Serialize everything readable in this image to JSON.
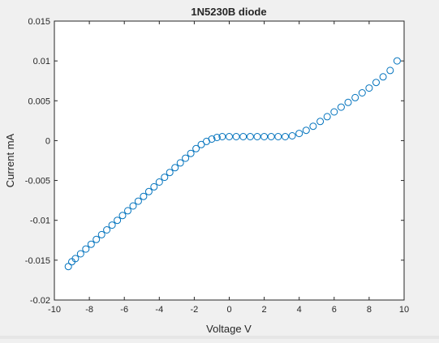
{
  "chart_data": {
    "type": "scatter",
    "title": "1N5230B diode",
    "xlabel": "Voltage V",
    "ylabel": "Current mA",
    "xlim": [
      -10,
      10
    ],
    "ylim": [
      -0.02,
      0.015
    ],
    "xticks": [
      -10,
      -8,
      -6,
      -4,
      -2,
      0,
      2,
      4,
      6,
      8,
      10
    ],
    "yticks": [
      -0.02,
      -0.015,
      -0.01,
      -0.005,
      0,
      0.005,
      0.01,
      0.015
    ],
    "xtick_labels": [
      "-10",
      "-8",
      "-6",
      "-4",
      "-2",
      "0",
      "2",
      "4",
      "6",
      "8",
      "10"
    ],
    "ytick_labels": [
      "-0.02",
      "-0.015",
      "-0.01",
      "-0.005",
      "0",
      "0.005",
      "0.01",
      "0.015"
    ],
    "marker": "open-circle",
    "marker_color": "#0072bd",
    "grid": false,
    "series": [
      {
        "points": [
          [
            -9.2,
            -0.0158
          ],
          [
            -9.0,
            -0.0152
          ],
          [
            -8.8,
            -0.0148
          ],
          [
            -8.5,
            -0.0142
          ],
          [
            -8.2,
            -0.0136
          ],
          [
            -7.9,
            -0.013
          ],
          [
            -7.6,
            -0.0124
          ],
          [
            -7.3,
            -0.0118
          ],
          [
            -7.0,
            -0.0112
          ],
          [
            -6.7,
            -0.0106
          ],
          [
            -6.4,
            -0.01
          ],
          [
            -6.1,
            -0.0094
          ],
          [
            -5.8,
            -0.0088
          ],
          [
            -5.5,
            -0.0082
          ],
          [
            -5.2,
            -0.0076
          ],
          [
            -4.9,
            -0.007
          ],
          [
            -4.6,
            -0.0064
          ],
          [
            -4.3,
            -0.0058
          ],
          [
            -4.0,
            -0.0052
          ],
          [
            -3.7,
            -0.0046
          ],
          [
            -3.4,
            -0.004
          ],
          [
            -3.1,
            -0.0034
          ],
          [
            -2.8,
            -0.0028
          ],
          [
            -2.5,
            -0.0022
          ],
          [
            -2.2,
            -0.0016
          ],
          [
            -1.9,
            -0.001
          ],
          [
            -1.6,
            -0.0005
          ],
          [
            -1.3,
            -0.0001
          ],
          [
            -1.0,
            0.0002
          ],
          [
            -0.7,
            0.0004
          ],
          [
            -0.4,
            0.0005
          ],
          [
            0.0,
            0.0005
          ],
          [
            0.4,
            0.0005
          ],
          [
            0.8,
            0.0005
          ],
          [
            1.2,
            0.0005
          ],
          [
            1.6,
            0.0005
          ],
          [
            2.0,
            0.0005
          ],
          [
            2.4,
            0.0005
          ],
          [
            2.8,
            0.0005
          ],
          [
            3.2,
            0.0005
          ],
          [
            3.6,
            0.0006
          ],
          [
            4.0,
            0.0009
          ],
          [
            4.4,
            0.0013
          ],
          [
            4.8,
            0.0018
          ],
          [
            5.2,
            0.0024
          ],
          [
            5.6,
            0.003
          ],
          [
            6.0,
            0.0036
          ],
          [
            6.4,
            0.0042
          ],
          [
            6.8,
            0.0048
          ],
          [
            7.2,
            0.0054
          ],
          [
            7.6,
            0.006
          ],
          [
            8.0,
            0.0066
          ],
          [
            8.4,
            0.0073
          ],
          [
            8.8,
            0.008
          ],
          [
            9.2,
            0.0088
          ],
          [
            9.6,
            0.01
          ]
        ]
      }
    ]
  }
}
